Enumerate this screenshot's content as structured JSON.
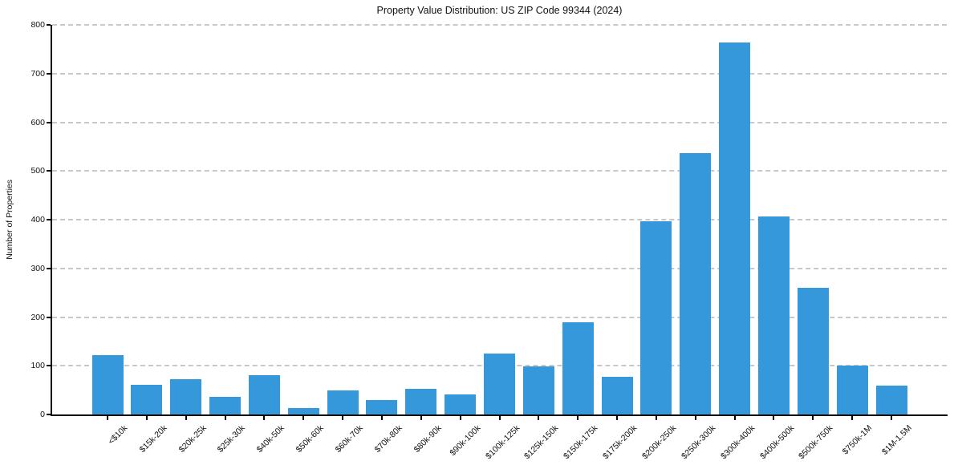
{
  "chart_data": {
    "type": "bar",
    "title": "Property Value Distribution: US ZIP Code 99344 (2024)",
    "xlabel": "",
    "ylabel": "Number of Properties",
    "categories": [
      "<$10k",
      "$15k-20k",
      "$20k-25k",
      "$25k-30k",
      "$40k-50k",
      "$50k-60k",
      "$60k-70k",
      "$70k-80k",
      "$80k-90k",
      "$90k-100k",
      "$100k-125k",
      "$125k-150k",
      "$150k-175k",
      "$175k-200k",
      "$200k-250k",
      "$250k-300k",
      "$300k-400k",
      "$400k-500k",
      "$500k-750k",
      "$750k-1M",
      "$1M-1.5M"
    ],
    "values": [
      121,
      61,
      72,
      36,
      81,
      13,
      49,
      30,
      52,
      41,
      125,
      99,
      190,
      77,
      396,
      536,
      764,
      407,
      260,
      100,
      59
    ],
    "ylim": [
      0,
      800
    ],
    "yticks": [
      0,
      100,
      200,
      300,
      400,
      500,
      600,
      700,
      800
    ],
    "grid": "horizontal-dashed",
    "legend": "none",
    "bar_color": "#3498db",
    "grid_color": "#c8c8c8",
    "axis_color": "#000000",
    "text_color": "#111111"
  }
}
